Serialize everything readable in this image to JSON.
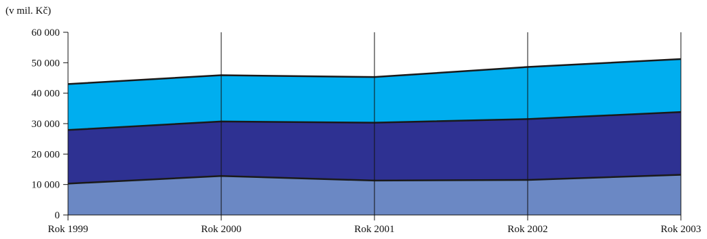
{
  "chart_data": {
    "type": "area",
    "stacked": true,
    "unit_label": "(v mil. Kč)",
    "categories": [
      "Rok 1999",
      "Rok 2000",
      "Rok 2001",
      "Rok 2002",
      "Rok 2003"
    ],
    "ylim": [
      0,
      60000
    ],
    "yticks": [
      0,
      10000,
      20000,
      30000,
      40000,
      50000,
      60000
    ],
    "ytick_labels": [
      "0",
      "10 000",
      "20 000",
      "30 000",
      "40 000",
      "50 000",
      "60 000"
    ],
    "grid": "vertical lines at categories",
    "series": [
      {
        "values": [
          10300,
          12800,
          11300,
          11500,
          13200
        ],
        "color": "#6b88c4"
      },
      {
        "values": [
          17600,
          17900,
          19000,
          20000,
          20600
        ],
        "color": "#2e3192"
      },
      {
        "values": [
          15100,
          15200,
          15000,
          17100,
          17400
        ],
        "color": "#00aeef"
      }
    ],
    "outline_color": "#1a1a1a"
  }
}
